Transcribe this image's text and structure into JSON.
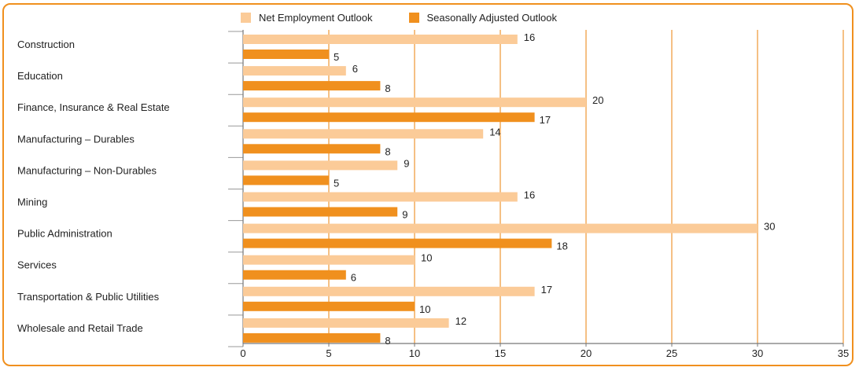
{
  "chart_data": {
    "type": "bar",
    "orientation": "horizontal",
    "categories": [
      "Construction",
      "Education",
      "Finance, Insurance & Real Estate",
      "Manufacturing – Durables",
      "Manufacturing – Non-Durables",
      "Mining",
      "Public Administration",
      "Services",
      "Transportation & Public Utilities",
      "Wholesale and Retail Trade"
    ],
    "series": [
      {
        "name": "Net Employment Outlook",
        "color": "#fbcb98",
        "values": [
          16,
          6,
          20,
          14,
          9,
          16,
          30,
          10,
          17,
          12
        ]
      },
      {
        "name": "Seasonally Adjusted Outlook",
        "color": "#f0901e",
        "values": [
          5,
          8,
          17,
          8,
          5,
          9,
          18,
          6,
          10,
          8
        ]
      }
    ],
    "xlim": [
      0,
      35
    ],
    "xticks": [
      0,
      5,
      10,
      15,
      20,
      25,
      30,
      35
    ],
    "grid": "vertical",
    "legend": "top",
    "gridColor": "#f5c084"
  }
}
